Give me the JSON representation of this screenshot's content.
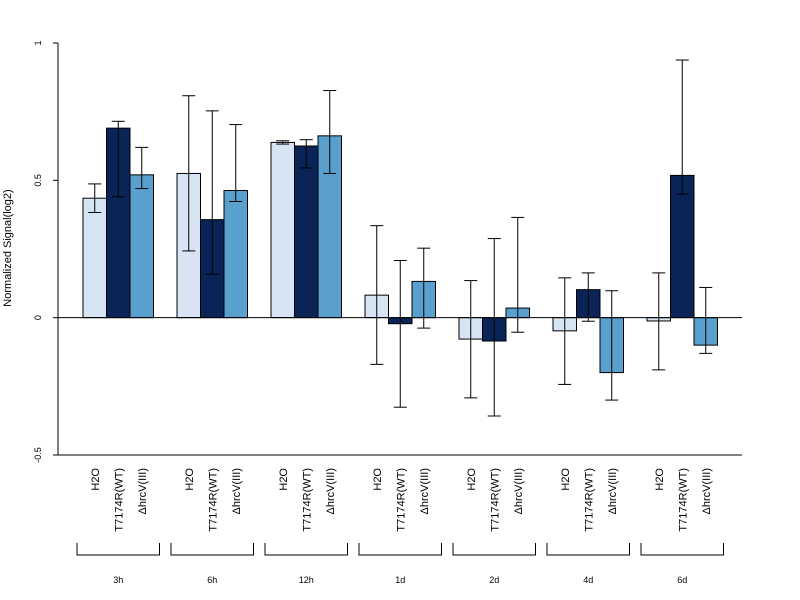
{
  "chart_data": {
    "type": "bar",
    "ylabel": "Normalized Signal(log2)",
    "ylim": [
      -0.5,
      1
    ],
    "yticks": [
      -0.5,
      0,
      0.5,
      1
    ],
    "ytick_labels": [
      "-0.5",
      "0",
      "0.5",
      "1"
    ],
    "groups": [
      "3h",
      "6h",
      "12h",
      "1d",
      "2d",
      "4d",
      "6d"
    ],
    "series_labels": [
      "H2O",
      "T7174R(WT)",
      "ΔhrcV(III)"
    ],
    "colors": [
      "#d6e4f3",
      "#0b2458",
      "#5aa0cf"
    ],
    "series": [
      {
        "values": [
          0.435,
          0.525,
          0.638,
          0.082,
          -0.078,
          -0.048,
          -0.012
        ],
        "err_low": [
          0.383,
          0.243,
          0.632,
          -0.17,
          -0.292,
          -0.243,
          -0.19
        ],
        "err_high": [
          0.487,
          0.808,
          0.644,
          0.335,
          0.135,
          0.145,
          0.163
        ]
      },
      {
        "values": [
          0.69,
          0.357,
          0.625,
          -0.022,
          -0.085,
          0.102,
          0.518
        ],
        "err_low": [
          0.44,
          0.158,
          0.545,
          -0.326,
          -0.358,
          -0.013,
          0.45
        ],
        "err_high": [
          0.715,
          0.753,
          0.648,
          0.208,
          0.288,
          0.163,
          0.938
        ]
      },
      {
        "values": [
          0.52,
          0.463,
          0.662,
          0.132,
          0.035,
          -0.2,
          -0.1
        ],
        "err_low": [
          0.47,
          0.423,
          0.525,
          -0.038,
          -0.053,
          -0.3,
          -0.13
        ],
        "err_high": [
          0.62,
          0.703,
          0.827,
          0.253,
          0.365,
          0.098,
          0.11
        ]
      }
    ]
  }
}
